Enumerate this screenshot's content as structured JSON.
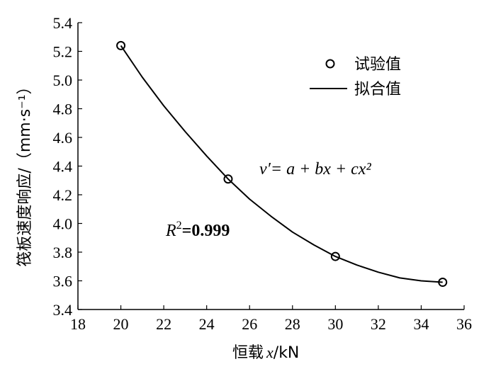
{
  "chart_data": {
    "type": "scatter",
    "xlabel_main": "恒载",
    "xlabel_var": "x",
    "xlabel_unit": "/kN",
    "ylabel": "筏板速度响应/（mm·s⁻¹）",
    "xlim": [
      18,
      36
    ],
    "ylim": [
      3.4,
      5.4
    ],
    "xticks": [
      18,
      20,
      22,
      24,
      26,
      28,
      30,
      32,
      34,
      36
    ],
    "yticks": [
      3.4,
      3.6,
      3.8,
      4.0,
      4.2,
      4.4,
      4.6,
      4.8,
      5.0,
      5.2,
      5.4
    ],
    "series": [
      {
        "name": "试验值",
        "kind": "marker",
        "x": [
          20,
          25,
          30,
          35
        ],
        "y": [
          5.24,
          4.31,
          3.77,
          3.59
        ]
      },
      {
        "name": "拟合值",
        "kind": "line",
        "x": [
          20,
          21,
          22,
          23,
          24,
          25,
          26,
          27,
          28,
          29,
          30,
          31,
          32,
          33,
          34,
          35
        ],
        "y": [
          5.24,
          5.02,
          4.82,
          4.64,
          4.47,
          4.31,
          4.17,
          4.05,
          3.94,
          3.85,
          3.77,
          3.71,
          3.66,
          3.62,
          3.6,
          3.59
        ]
      }
    ],
    "equation": "v′= a + bx + cx²",
    "r2_label": "R",
    "r2_sup": "2",
    "r2_value": "=0.999",
    "legend_position": "top-right"
  }
}
